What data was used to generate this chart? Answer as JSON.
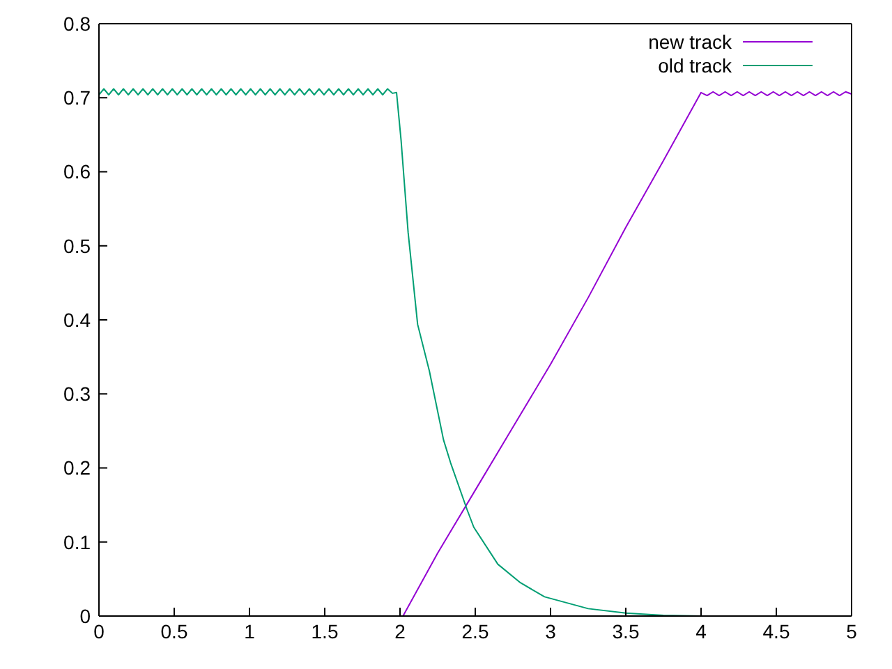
{
  "chart_data": {
    "type": "line",
    "xlim": [
      0,
      5
    ],
    "ylim": [
      0,
      0.8
    ],
    "xticks": [
      0,
      0.5,
      1,
      1.5,
      2,
      2.5,
      3,
      3.5,
      4,
      4.5,
      5
    ],
    "yticks": [
      0,
      0.1,
      0.2,
      0.3,
      0.4,
      0.5,
      0.6,
      0.7,
      0.8
    ],
    "legend": "top right",
    "marker": "none",
    "line_style": "solid",
    "series": [
      {
        "name": "new track",
        "color": "#9400d3",
        "x": [
          2.02,
          2.25,
          2.5,
          2.75,
          3,
          3.25,
          3.5,
          3.75,
          4,
          4.04,
          4.08,
          4.12,
          4.16,
          4.2,
          4.24,
          4.28,
          4.32,
          4.36,
          4.4,
          4.44,
          4.48,
          4.52,
          4.56,
          4.6,
          4.64,
          4.68,
          4.72,
          4.76,
          4.8,
          4.84,
          4.88,
          4.92,
          4.96,
          5
        ],
        "values": [
          0,
          0.085,
          0.17,
          0.255,
          0.34,
          0.43,
          0.525,
          0.615,
          0.707,
          0.703,
          0.708,
          0.703,
          0.708,
          0.703,
          0.708,
          0.703,
          0.708,
          0.703,
          0.708,
          0.703,
          0.708,
          0.703,
          0.708,
          0.703,
          0.708,
          0.703,
          0.708,
          0.703,
          0.708,
          0.703,
          0.708,
          0.703,
          0.708,
          0.705
        ]
      },
      {
        "name": "old track",
        "color": "#009e73",
        "x": [
          0,
          0.0325,
          0.065,
          0.0975,
          0.13,
          0.1625,
          0.195,
          0.2275,
          0.26,
          0.2925,
          0.325,
          0.3575,
          0.39,
          0.4225,
          0.455,
          0.4875,
          0.52,
          0.5525,
          0.585,
          0.6175,
          0.65,
          0.6825,
          0.715,
          0.7475,
          0.78,
          0.8125,
          0.845,
          0.8775,
          0.91,
          0.9425,
          0.975,
          1.0075,
          1.04,
          1.0725,
          1.105,
          1.1375,
          1.17,
          1.2025,
          1.235,
          1.2675,
          1.3,
          1.3325,
          1.365,
          1.3975,
          1.43,
          1.4625,
          1.495,
          1.5275,
          1.56,
          1.5925,
          1.625,
          1.6575,
          1.69,
          1.7225,
          1.755,
          1.7875,
          1.82,
          1.8525,
          1.885,
          1.9175,
          1.95,
          1.977,
          2.007,
          2.054,
          2.117,
          2.195,
          2.289,
          2.336,
          2.445,
          2.49,
          2.65,
          2.8,
          2.96,
          3.25,
          3.5,
          3.75,
          4
        ],
        "values": [
          0.704,
          0.712,
          0.704,
          0.712,
          0.704,
          0.712,
          0.704,
          0.712,
          0.704,
          0.712,
          0.704,
          0.712,
          0.704,
          0.712,
          0.704,
          0.712,
          0.704,
          0.712,
          0.704,
          0.712,
          0.704,
          0.712,
          0.704,
          0.712,
          0.704,
          0.712,
          0.704,
          0.712,
          0.704,
          0.712,
          0.704,
          0.712,
          0.704,
          0.712,
          0.704,
          0.712,
          0.704,
          0.712,
          0.704,
          0.712,
          0.704,
          0.712,
          0.704,
          0.712,
          0.704,
          0.712,
          0.704,
          0.712,
          0.704,
          0.712,
          0.704,
          0.712,
          0.704,
          0.712,
          0.704,
          0.712,
          0.704,
          0.712,
          0.704,
          0.712,
          0.706,
          0.707,
          0.643,
          0.518,
          0.394,
          0.331,
          0.238,
          0.207,
          0.144,
          0.12,
          0.07,
          0.045,
          0.026,
          0.01,
          0.004,
          0.001,
          0
        ]
      }
    ]
  }
}
